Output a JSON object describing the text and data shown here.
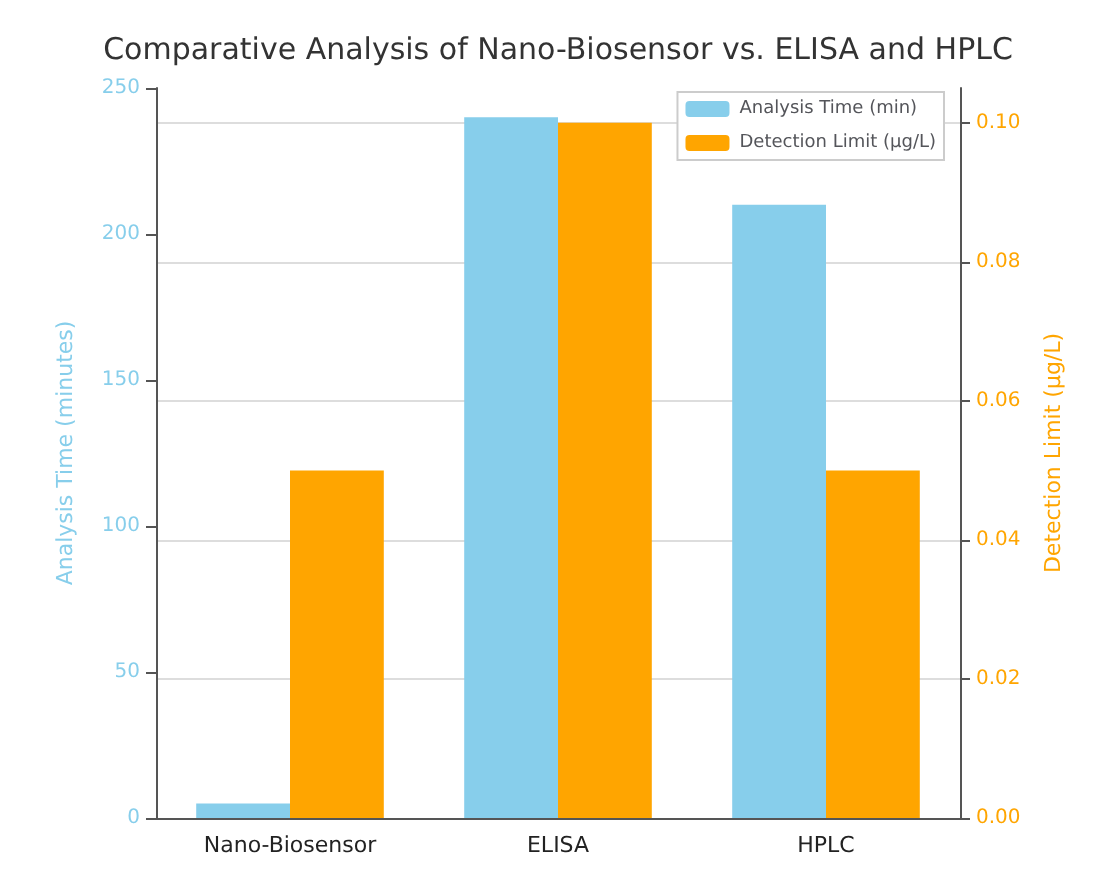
{
  "chart_data": {
    "type": "bar",
    "title": "Comparative Analysis of Nano-Biosensor vs. ELISA and HPLC",
    "categories": [
      "Nano-Biosensor",
      "ELISA",
      "HPLC"
    ],
    "ylabel": "Analysis Time (minutes)",
    "y2label": "Detection Limit (µg/L)",
    "series": [
      {
        "name": "Analysis Time (min)",
        "color": "#87ceeb",
        "values": [
          5,
          240,
          210
        ]
      },
      {
        "name": "Detection Limit (µg/L)",
        "color": "#ffa500",
        "values": [
          0.05,
          0.1,
          0.05
        ],
        "axis": "y2"
      }
    ],
    "ylim": [
      0,
      250
    ],
    "yticks": [
      0,
      50,
      100,
      150,
      200,
      250
    ],
    "y2lim": [
      0,
      0.105
    ],
    "y2ticks": [
      {
        "value": 0,
        "label": "0.00"
      },
      {
        "value": 0.02,
        "label": "0.02"
      },
      {
        "value": 0.04,
        "label": "0.04"
      },
      {
        "value": 0.06,
        "label": "0.06"
      },
      {
        "value": 0.08,
        "label": "0.08"
      },
      {
        "value": 0.1,
        "label": "0.10"
      }
    ],
    "grid": "y2",
    "legend": "top right"
  }
}
